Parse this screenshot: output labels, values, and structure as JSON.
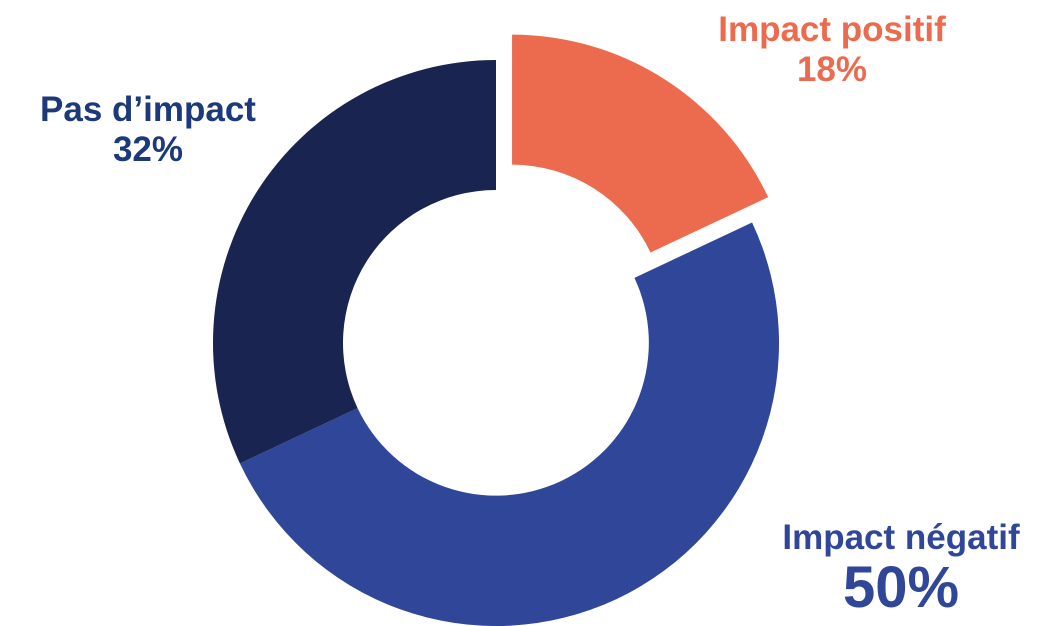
{
  "chart_data": {
    "type": "pie",
    "style": "donut",
    "slices": [
      {
        "label": "Impact positif",
        "value": 18,
        "display": "18%",
        "color": "#ec6b4e",
        "exploded": true
      },
      {
        "label": "Impact négatif",
        "value": 50,
        "display": "50%",
        "color": "#2f4699",
        "exploded": false
      },
      {
        "label": "Pas d’impact",
        "value": 32,
        "display": "32%",
        "color": "#1a2451",
        "exploded": false
      }
    ],
    "title": "",
    "legend": "none"
  }
}
